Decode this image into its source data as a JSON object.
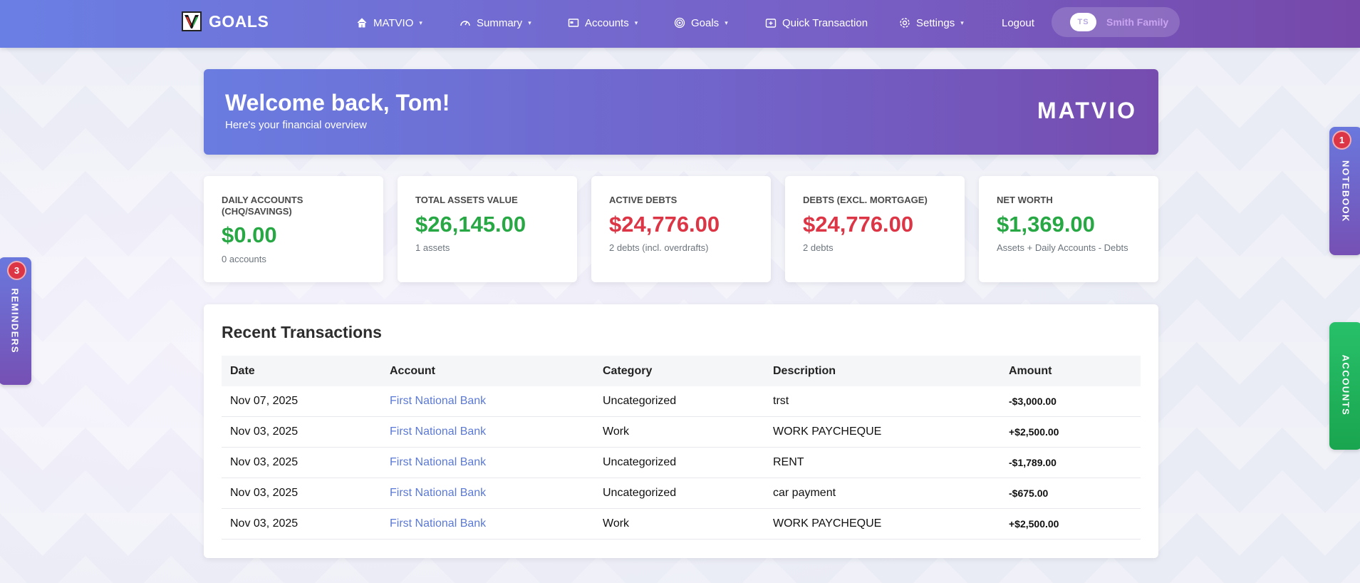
{
  "app": {
    "title": "GOALS"
  },
  "navbar": {
    "items": [
      {
        "label": "MATVIO",
        "icon": "home-icon",
        "dropdown": true
      },
      {
        "label": "Summary",
        "icon": "speedometer-icon",
        "dropdown": true
      },
      {
        "label": "Accounts",
        "icon": "bank-card-icon",
        "dropdown": true
      },
      {
        "label": "Goals",
        "icon": "target-icon",
        "dropdown": true
      },
      {
        "label": "Quick Transaction",
        "icon": "wallet-plus-icon",
        "dropdown": false
      },
      {
        "label": "Settings",
        "icon": "gear-icon",
        "dropdown": true
      },
      {
        "label": "Logout",
        "icon": "",
        "dropdown": false
      }
    ],
    "family": {
      "initials": "TS",
      "name": "Smith Family"
    }
  },
  "welcome": {
    "title": "Welcome back, Tom!",
    "subtitle": "Here's your financial overview",
    "logo_text": "MATVIO"
  },
  "stats": [
    {
      "label": "DAILY ACCOUNTS (CHQ/SAVINGS)",
      "value": "$0.00",
      "sub": "0 accounts",
      "color": "#28a745"
    },
    {
      "label": "TOTAL ASSETS VALUE",
      "value": "$26,145.00",
      "sub": "1 assets",
      "color": "#28a745"
    },
    {
      "label": "ACTIVE DEBTS",
      "value": "$24,776.00",
      "sub": "2 debts (incl. overdrafts)",
      "color": "#dc3545"
    },
    {
      "label": "DEBTS (EXCL. MORTGAGE)",
      "value": "$24,776.00",
      "sub": "2 debts",
      "color": "#dc3545"
    },
    {
      "label": "NET WORTH",
      "value": "$1,369.00",
      "sub": "Assets + Daily Accounts - Debts",
      "color": "#28a745"
    }
  ],
  "transactions": {
    "title": "Recent Transactions",
    "columns": [
      "Date",
      "Account",
      "Category",
      "Description",
      "Amount"
    ],
    "rows": [
      {
        "date": "Nov 07, 2025",
        "account": "First National Bank",
        "category": "Uncategorized",
        "description": "trst",
        "amount": "-$3,000.00"
      },
      {
        "date": "Nov 03, 2025",
        "account": "First National Bank",
        "category": "Work",
        "description": "WORK PAYCHEQUE",
        "amount": "+$2,500.00"
      },
      {
        "date": "Nov 03, 2025",
        "account": "First National Bank",
        "category": "Uncategorized",
        "description": "RENT",
        "amount": "-$1,789.00"
      },
      {
        "date": "Nov 03, 2025",
        "account": "First National Bank",
        "category": "Uncategorized",
        "description": "car payment",
        "amount": "-$675.00"
      },
      {
        "date": "Nov 03, 2025",
        "account": "First National Bank",
        "category": "Work",
        "description": "WORK PAYCHEQUE",
        "amount": "+$2,500.00"
      }
    ]
  },
  "side_tabs": {
    "reminders": {
      "label": "REMINDERS",
      "badge": "3"
    },
    "notebook": {
      "label": "NOTEBOOK",
      "badge": "1"
    },
    "accounts": {
      "label": "ACCOUNTS"
    }
  },
  "colors": {
    "accent": "#6a7fe4",
    "accent_dark": "#764caf",
    "positive": "#28a745",
    "negative": "#dc3545",
    "link": "#5b79d6",
    "accounts_tab": "#22b45a"
  }
}
